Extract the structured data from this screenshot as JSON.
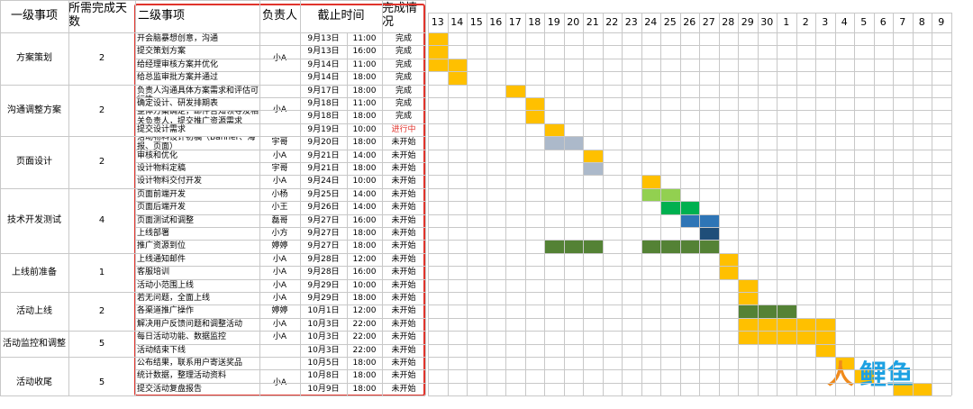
{
  "headers": {
    "level1": "一级事项",
    "days": "所需完成天数",
    "level2": "二级事项",
    "owner": "负责人",
    "deadline": "截止时间",
    "status": "完成情况"
  },
  "date_columns": [
    "13",
    "14",
    "15",
    "16",
    "17",
    "18",
    "19",
    "20",
    "21",
    "22",
    "23",
    "24",
    "25",
    "26",
    "27",
    "28",
    "29",
    "30",
    "1",
    "2",
    "3",
    "4",
    "5",
    "6",
    "7",
    "8",
    "9"
  ],
  "groups": [
    {
      "name": "方案策划",
      "days": "2",
      "start": 0,
      "end": 4
    },
    {
      "name": "沟通调整方案",
      "days": "2",
      "start": 4,
      "end": 8
    },
    {
      "name": "页面设计",
      "days": "2",
      "start": 8,
      "end": 12
    },
    {
      "name": "技术开发测试",
      "days": "4",
      "start": 12,
      "end": 17
    },
    {
      "name": "上线前准备",
      "days": "1",
      "start": 17,
      "end": 20
    },
    {
      "name": "活动上线",
      "days": "2",
      "start": 20,
      "end": 23
    },
    {
      "name": "活动监控和调整",
      "days": "5",
      "start": 23,
      "end": 25
    },
    {
      "name": "活动收尾",
      "days": "5",
      "start": 25,
      "end": 29
    }
  ],
  "owner_merges": [
    {
      "start": 0,
      "end": 4,
      "owner": "小A"
    },
    {
      "start": 4,
      "end": 8,
      "owner": "小A"
    },
    {
      "start": 25,
      "end": 29,
      "owner": "小A"
    }
  ],
  "tasks": [
    {
      "name": "开会脑暴想创意，沟通",
      "owner": "",
      "date": "9月13日",
      "time": "11:00",
      "status": "完成"
    },
    {
      "name": "提交策划方案",
      "owner": "",
      "date": "9月13日",
      "time": "16:00",
      "status": "完成"
    },
    {
      "name": "给经理审核方案并优化",
      "owner": "",
      "date": "9月14日",
      "time": "11:00",
      "status": "完成"
    },
    {
      "name": "给总监审批方案并通过",
      "owner": "",
      "date": "9月14日",
      "time": "18:00",
      "status": "完成"
    },
    {
      "name": "和产品、研发、设计、推广等相关负责人沟通具体方案需求和评估可行性",
      "owner": "",
      "date": "9月17日",
      "time": "18:00",
      "status": "完成"
    },
    {
      "name": "确定设计、研发排期表",
      "owner": "",
      "date": "9月18日",
      "time": "11:00",
      "status": "完成"
    },
    {
      "name": "整体方案确定，邮件告知领导及相关负责人，提交推广资源需求",
      "owner": "",
      "date": "9月18日",
      "time": "18:00",
      "status": "完成"
    },
    {
      "name": "提交设计需求",
      "owner": "小A",
      "date": "9月19日",
      "time": "10:00",
      "status": "进行中"
    },
    {
      "name": "活动物料设计初稿（Banner、海报、页面）",
      "owner": "宇哥",
      "date": "9月20日",
      "time": "18:00",
      "status": "未开始"
    },
    {
      "name": "审核和优化",
      "owner": "小A",
      "date": "9月21日",
      "time": "14:00",
      "status": "未开始"
    },
    {
      "name": "设计物料定稿",
      "owner": "宇哥",
      "date": "9月21日",
      "time": "18:00",
      "status": "未开始"
    },
    {
      "name": "设计物料交付开发",
      "owner": "小A",
      "date": "9月24日",
      "time": "10:00",
      "status": "未开始"
    },
    {
      "name": "页面前端开发",
      "owner": "小杨",
      "date": "9月25日",
      "time": "14:00",
      "status": "未开始"
    },
    {
      "name": "页面后端开发",
      "owner": "小王",
      "date": "9月26日",
      "time": "14:00",
      "status": "未开始"
    },
    {
      "name": "页面测试和调整",
      "owner": "磊哥",
      "date": "9月27日",
      "time": "16:00",
      "status": "未开始"
    },
    {
      "name": "上线部署",
      "owner": "小方",
      "date": "9月27日",
      "time": "18:00",
      "status": "未开始"
    },
    {
      "name": "推广资源到位",
      "owner": "婷婷",
      "date": "9月27日",
      "time": "18:00",
      "status": "未开始"
    },
    {
      "name": "上线通知邮件",
      "owner": "小A",
      "date": "9月28日",
      "time": "12:00",
      "status": "未开始"
    },
    {
      "name": "客服培训",
      "owner": "小A",
      "date": "9月28日",
      "time": "16:00",
      "status": "未开始"
    },
    {
      "name": "活动小范围上线",
      "owner": "小A",
      "date": "9月29日",
      "time": "10:00",
      "status": "未开始"
    },
    {
      "name": "若无问题，全面上线",
      "owner": "小A",
      "date": "9月29日",
      "time": "18:00",
      "status": "未开始"
    },
    {
      "name": "各渠道推广操作",
      "owner": "婷婷",
      "date": "10月1日",
      "time": "12:00",
      "status": "未开始"
    },
    {
      "name": "解决用户反馈问题和调整活动",
      "owner": "小A",
      "date": "10月3日",
      "time": "22:00",
      "status": "未开始"
    },
    {
      "name": "每日活动功能、数据监控",
      "owner": "小A",
      "date": "10月3日",
      "time": "22:00",
      "status": "未开始"
    },
    {
      "name": "活动结束下线",
      "owner": "",
      "date": "10月3日",
      "time": "22:00",
      "status": "未开始"
    },
    {
      "name": "公布结果，联系用户寄送奖品",
      "owner": "",
      "date": "10月5日",
      "time": "18:00",
      "status": "未开始"
    },
    {
      "name": "统计数据，整理活动资料",
      "owner": "",
      "date": "10月8日",
      "time": "18:00",
      "status": "未开始"
    },
    {
      "name": "提交活动复盘报告",
      "owner": "",
      "date": "10月9日",
      "time": "18:00",
      "status": "未开始"
    }
  ],
  "gantt": [
    {
      "row": 0,
      "col": 0,
      "color": "#ffc000"
    },
    {
      "row": 1,
      "col": 0,
      "color": "#ffc000"
    },
    {
      "row": 2,
      "col": 0,
      "span": 2,
      "color": "#ffc000"
    },
    {
      "row": 3,
      "col": 1,
      "color": "#ffc000"
    },
    {
      "row": 4,
      "col": 4,
      "color": "#ffc000"
    },
    {
      "row": 5,
      "col": 5,
      "color": "#ffc000"
    },
    {
      "row": 6,
      "col": 5,
      "color": "#ffc000"
    },
    {
      "row": 7,
      "col": 6,
      "color": "#ffc000"
    },
    {
      "row": 8,
      "col": 6,
      "span": 2,
      "color": "#acb9ca"
    },
    {
      "row": 9,
      "col": 8,
      "color": "#ffc000"
    },
    {
      "row": 10,
      "col": 8,
      "color": "#acb9ca"
    },
    {
      "row": 11,
      "col": 11,
      "color": "#ffc000"
    },
    {
      "row": 12,
      "col": 11,
      "color": "#92d050"
    },
    {
      "row": 12,
      "col": 12,
      "color": "#92d050"
    },
    {
      "row": 13,
      "col": 12,
      "span": 2,
      "color": "#00b050"
    },
    {
      "row": 14,
      "col": 13,
      "span": 2,
      "color": "#2e75b6"
    },
    {
      "row": 15,
      "col": 14,
      "color": "#1f4e79"
    },
    {
      "row": 16,
      "col": 6,
      "span": 3,
      "color": "#548235"
    },
    {
      "row": 16,
      "col": 11,
      "span": 4,
      "color": "#548235"
    },
    {
      "row": 17,
      "col": 15,
      "color": "#ffc000"
    },
    {
      "row": 18,
      "col": 15,
      "color": "#ffc000"
    },
    {
      "row": 19,
      "col": 16,
      "color": "#ffc000"
    },
    {
      "row": 20,
      "col": 16,
      "color": "#ffc000"
    },
    {
      "row": 21,
      "col": 16,
      "span": 3,
      "color": "#548235"
    },
    {
      "row": 22,
      "col": 16,
      "span": 5,
      "color": "#ffc000"
    },
    {
      "row": 23,
      "col": 16,
      "span": 5,
      "color": "#ffc000"
    },
    {
      "row": 24,
      "col": 20,
      "color": "#ffc000"
    },
    {
      "row": 25,
      "col": 21,
      "color": "#ffc000"
    },
    {
      "row": 26,
      "col": 22,
      "color": "#ffc000"
    },
    {
      "row": 27,
      "col": 24,
      "span": 2,
      "color": "#ffc000"
    }
  ],
  "watermark": {
    "part1": "人",
    "part2": "鲤鱼"
  }
}
